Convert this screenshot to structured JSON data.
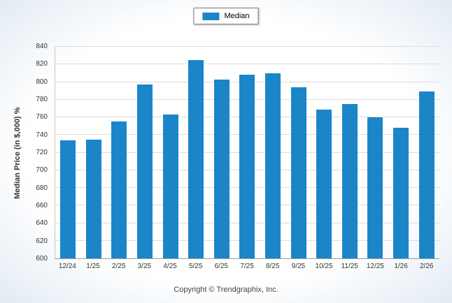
{
  "legend": {
    "label": "Median"
  },
  "footer": {
    "copyright": "Copyright © Trendgraphix, Inc."
  },
  "colors": {
    "bar": "#1a86c8",
    "grid": "#dcdcdc",
    "axis": "#9a9a9a"
  },
  "chart_data": {
    "type": "bar",
    "title": "",
    "xlabel": "",
    "ylabel": "Median Price (in $,000) %",
    "ylim": [
      600,
      840
    ],
    "yticks": [
      600,
      620,
      640,
      660,
      680,
      700,
      720,
      740,
      760,
      780,
      800,
      820,
      840
    ],
    "categories": [
      "12/24",
      "1/25",
      "2/25",
      "3/25",
      "4/25",
      "5/25",
      "6/25",
      "7/25",
      "8/25",
      "9/25",
      "10/25",
      "11/25",
      "12/25",
      "1/26",
      "2/26"
    ],
    "values": [
      734,
      735,
      755,
      797,
      763,
      825,
      803,
      808,
      810,
      794,
      769,
      775,
      760,
      748,
      789
    ],
    "series": [
      {
        "name": "Median",
        "values": [
          734,
          735,
          755,
          797,
          763,
          825,
          803,
          808,
          810,
          794,
          769,
          775,
          760,
          748,
          789
        ]
      }
    ],
    "grid": true,
    "legend_position": "top-center"
  }
}
